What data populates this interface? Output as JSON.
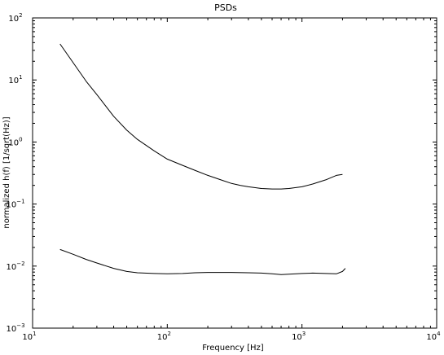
{
  "chart_data": {
    "type": "line",
    "title": "PSDs",
    "xlabel": "Frequency [Hz]",
    "ylabel": "normalized h(f) [1/sqrt(Hz)]",
    "xscale": "log",
    "yscale": "log",
    "xlim": [
      10,
      10000
    ],
    "ylim": [
      0.001,
      100
    ],
    "grid": false,
    "x_ticks": [
      {
        "base": "10",
        "exp": "1",
        "value": 10
      },
      {
        "base": "10",
        "exp": "2",
        "value": 100
      },
      {
        "base": "10",
        "exp": "3",
        "value": 1000
      },
      {
        "base": "10",
        "exp": "4",
        "value": 10000
      }
    ],
    "y_ticks": [
      {
        "base": "10",
        "exp": "−3",
        "value": 0.001
      },
      {
        "base": "10",
        "exp": "−2",
        "value": 0.01
      },
      {
        "base": "10",
        "exp": "−1",
        "value": 0.1
      },
      {
        "base": "10",
        "exp": "0",
        "value": 1
      },
      {
        "base": "10",
        "exp": "1",
        "value": 10
      },
      {
        "base": "10",
        "exp": "2",
        "value": 100
      }
    ],
    "series": [
      {
        "color": "#000000",
        "x": [
          16,
          20,
          25,
          30,
          40,
          50,
          60,
          80,
          100,
          130,
          160,
          200,
          250,
          300,
          350,
          400,
          500,
          600,
          700,
          800,
          1000,
          1200,
          1500,
          1800,
          2000
        ],
        "y": [
          38,
          19,
          9.5,
          5.8,
          2.6,
          1.55,
          1.1,
          0.72,
          0.53,
          0.42,
          0.35,
          0.29,
          0.245,
          0.215,
          0.2,
          0.19,
          0.178,
          0.175,
          0.175,
          0.178,
          0.19,
          0.21,
          0.245,
          0.29,
          0.3
        ]
      },
      {
        "color": "#000000",
        "x": [
          16,
          20,
          25,
          30,
          40,
          50,
          60,
          80,
          100,
          130,
          160,
          200,
          300,
          400,
          500,
          600,
          700,
          800,
          1000,
          1200,
          1500,
          1800,
          2000,
          2100
        ],
        "y": [
          0.0185,
          0.0155,
          0.0128,
          0.0112,
          0.0092,
          0.0082,
          0.0078,
          0.0076,
          0.0075,
          0.0076,
          0.0078,
          0.0079,
          0.0079,
          0.0078,
          0.0077,
          0.0075,
          0.0073,
          0.0074,
          0.0076,
          0.0077,
          0.0076,
          0.0075,
          0.0082,
          0.0092
        ]
      }
    ]
  }
}
